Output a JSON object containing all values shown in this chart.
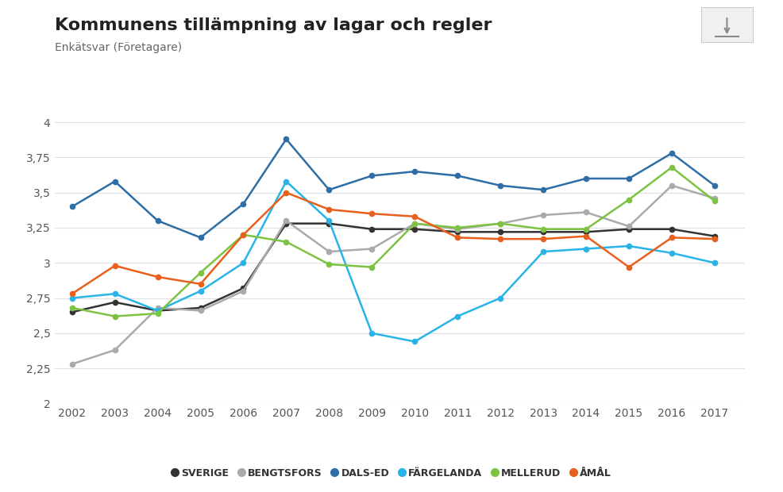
{
  "title": "Kommunens tillämpning av lagar och regler",
  "subtitle": "Enkätsvar (Företagare)",
  "years": [
    2002,
    2003,
    2004,
    2005,
    2006,
    2007,
    2008,
    2009,
    2010,
    2011,
    2012,
    2013,
    2014,
    2015,
    2016,
    2017
  ],
  "series": {
    "SVERIGE": {
      "color": "#333333",
      "values": [
        2.65,
        2.72,
        2.66,
        2.68,
        2.82,
        3.28,
        3.28,
        3.24,
        3.24,
        3.22,
        3.22,
        3.22,
        3.22,
        3.24,
        3.24,
        3.19
      ]
    },
    "BENGTSFORS": {
      "color": "#aaaaaa",
      "values": [
        2.28,
        2.38,
        2.68,
        2.66,
        2.8,
        3.3,
        3.08,
        3.1,
        3.28,
        3.24,
        3.28,
        3.34,
        3.36,
        3.26,
        3.55,
        3.46
      ]
    },
    "DALS-ED": {
      "color": "#2e6ea6",
      "values": [
        3.4,
        3.58,
        3.3,
        3.18,
        3.42,
        3.88,
        3.52,
        3.62,
        3.65,
        3.62,
        3.55,
        3.52,
        3.6,
        3.6,
        3.78,
        3.55
      ]
    },
    "FÄRGELANDA": {
      "color": "#29b4e8",
      "values": [
        2.75,
        2.78,
        2.66,
        2.8,
        3.0,
        3.58,
        3.3,
        2.5,
        2.44,
        2.62,
        2.75,
        3.08,
        3.1,
        3.12,
        3.07,
        3.0
      ]
    },
    "MELLERUD": {
      "color": "#7dc342",
      "values": [
        2.68,
        2.62,
        2.64,
        2.93,
        3.2,
        3.15,
        2.99,
        2.97,
        3.28,
        3.25,
        3.28,
        3.24,
        3.24,
        3.45,
        3.68,
        3.44
      ]
    },
    "ÅMÅL": {
      "color": "#e8601c",
      "values": [
        2.78,
        2.98,
        2.9,
        2.85,
        3.2,
        3.5,
        3.38,
        3.35,
        3.33,
        3.18,
        3.17,
        3.17,
        3.19,
        2.97,
        3.18,
        3.17
      ]
    }
  },
  "ylim": [
    2.0,
    4.1
  ],
  "yticks": [
    2.0,
    2.25,
    2.5,
    2.75,
    3.0,
    3.25,
    3.5,
    3.75,
    4.0
  ],
  "ytick_labels": [
    "2",
    "2,25",
    "2,5",
    "2,75",
    "3",
    "3,25",
    "3,5",
    "3,75",
    "4"
  ],
  "background_color": "#ffffff",
  "grid_color": "#e0e0e0",
  "title_fontsize": 16,
  "subtitle_fontsize": 10,
  "tick_fontsize": 10,
  "legend_fontsize": 9
}
